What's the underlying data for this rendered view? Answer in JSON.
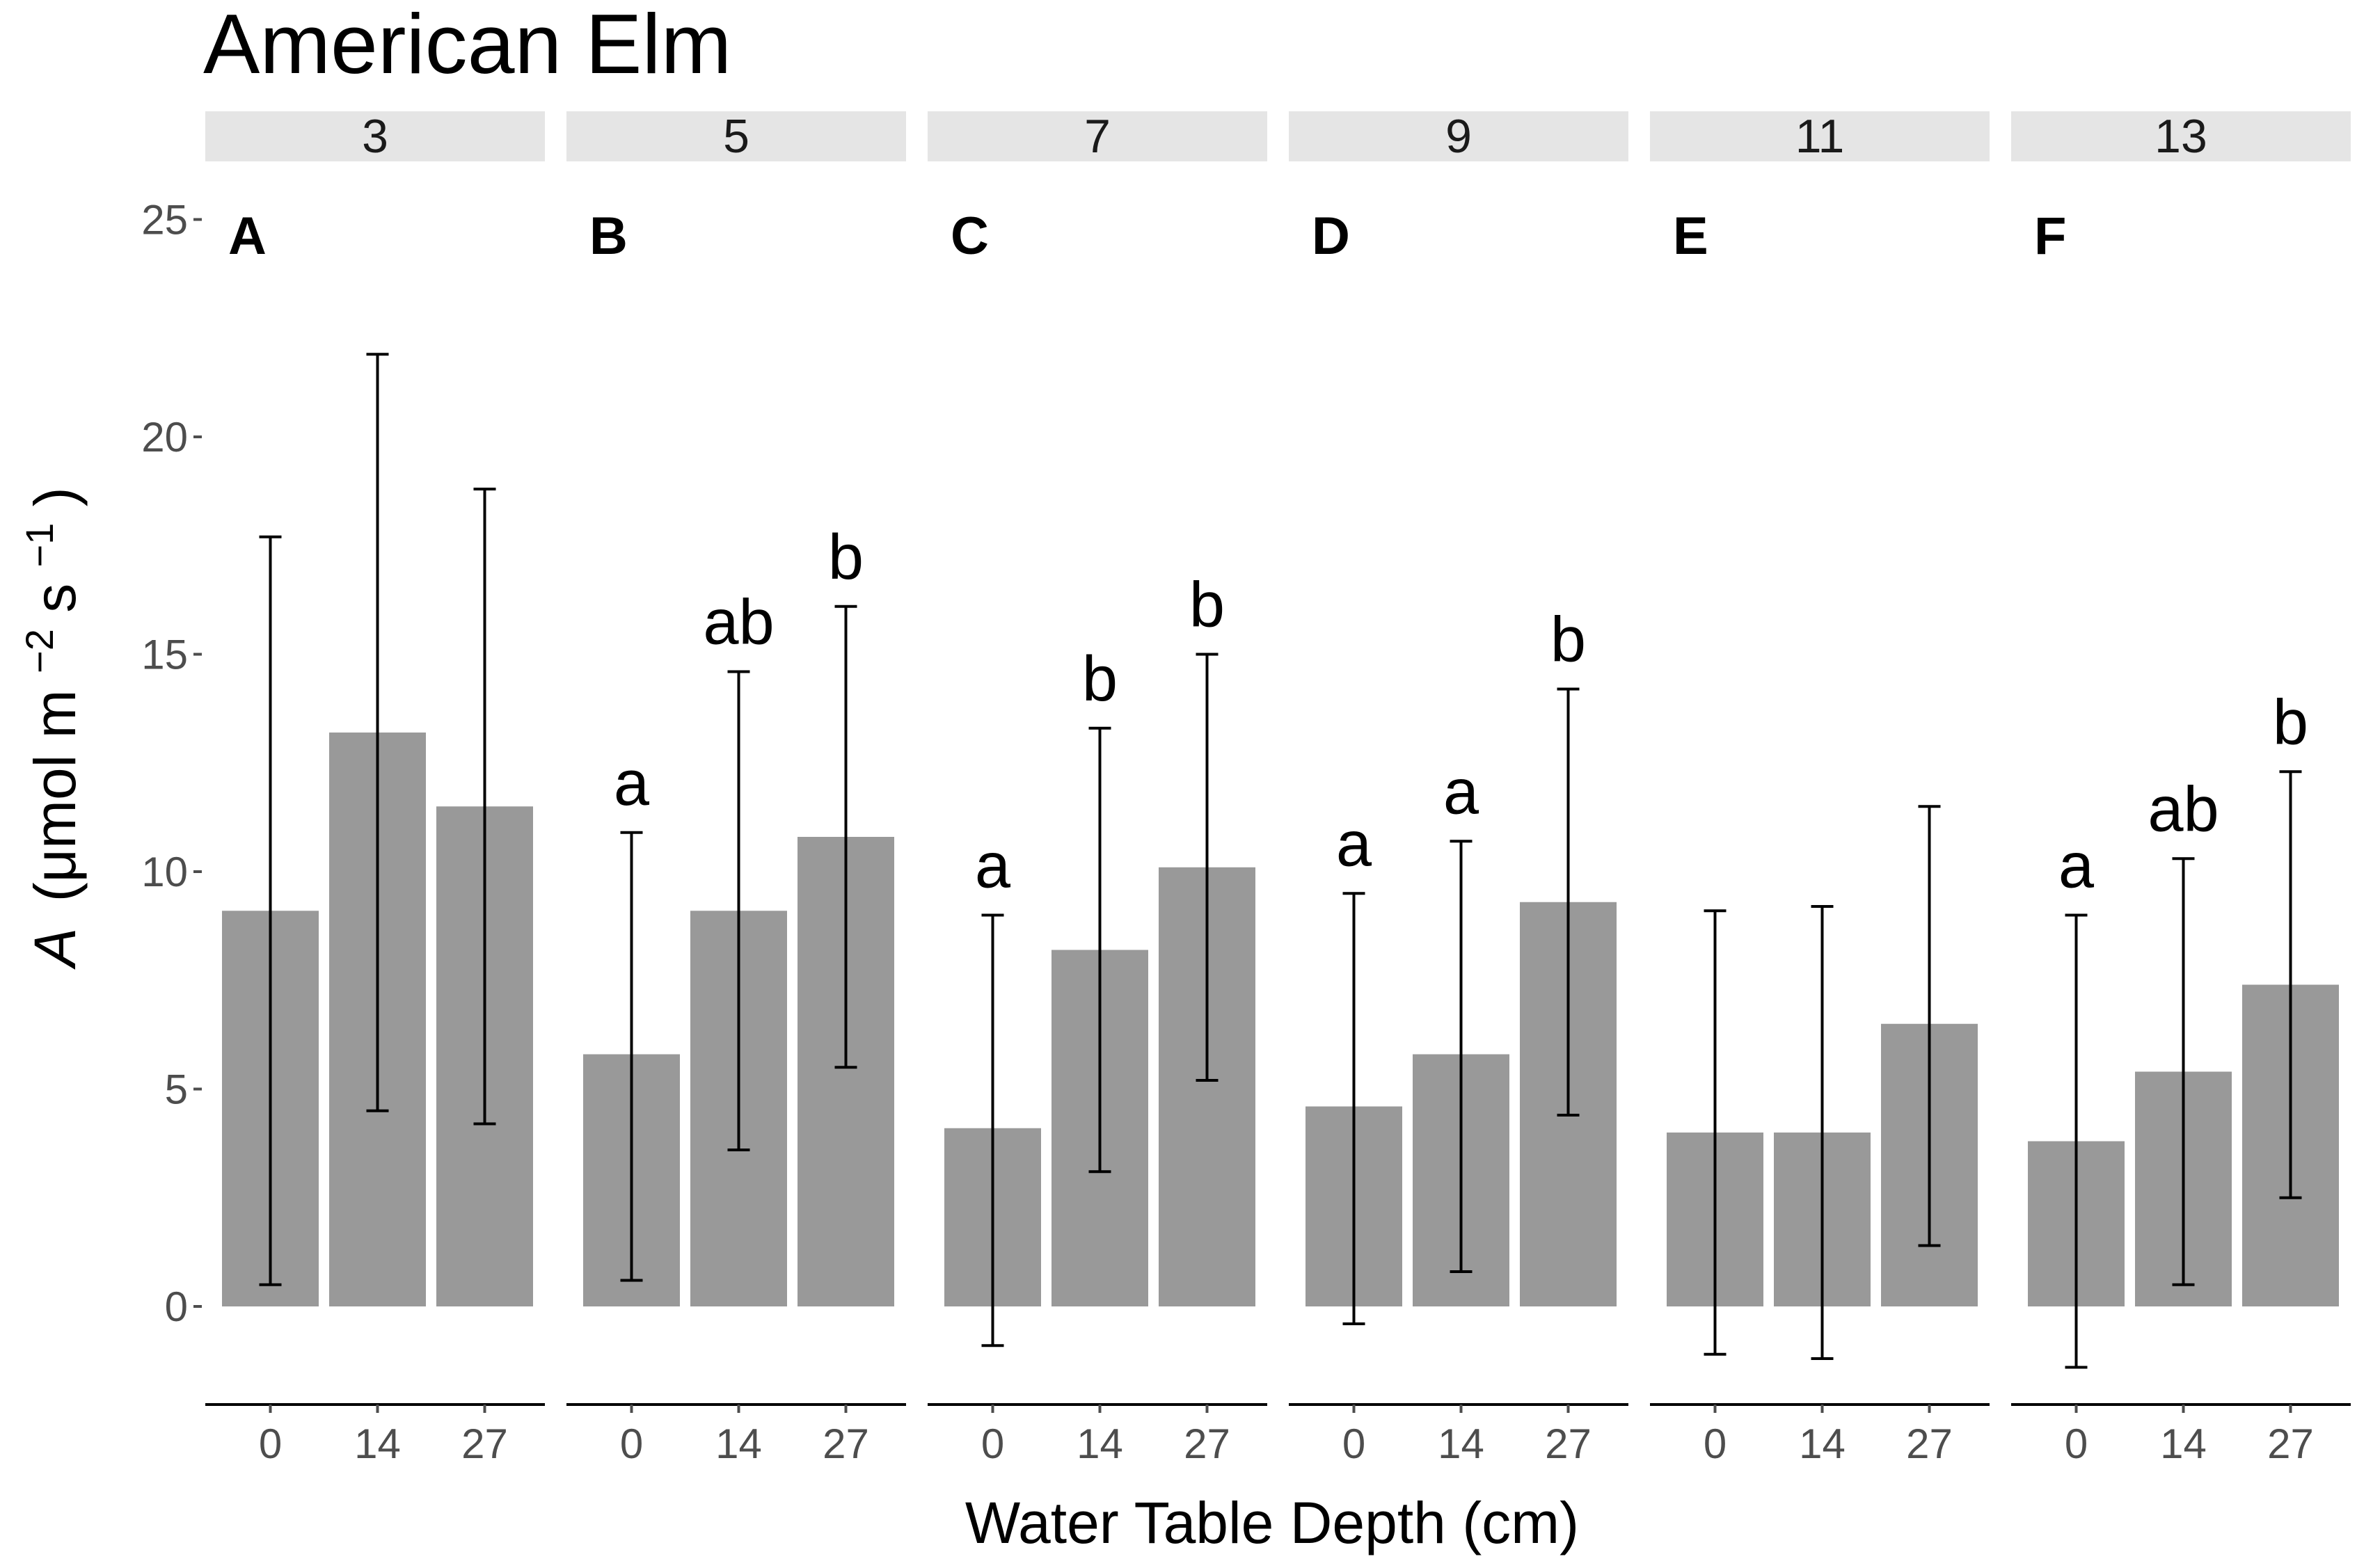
{
  "chart_data": {
    "type": "bar",
    "title": "American Elm",
    "xlabel": "Water Table Depth (cm)",
    "ylabel": {
      "symbol": "A",
      "unit_open": "(μmol m",
      "exp1": "−2",
      "unit_mid": " s",
      "exp2": "−1",
      "unit_close": ")"
    },
    "ylim": [
      -2.2,
      25.5
    ],
    "yticks": [
      0,
      5,
      10,
      15,
      20,
      25
    ],
    "categories": [
      "0",
      "14",
      "27"
    ],
    "colors": {
      "bar": "#999999",
      "strip": "#e5e5e5",
      "errorbar": "#000000",
      "axis": "#000000",
      "tick": "#4d4d4d"
    },
    "panels": [
      {
        "strip": "3",
        "letter": "A",
        "values": [
          9.1,
          13.2,
          11.5
        ],
        "err_low": [
          0.5,
          4.5,
          4.2
        ],
        "err_high": [
          17.7,
          21.9,
          18.8
        ],
        "sig": [
          "",
          "",
          ""
        ]
      },
      {
        "strip": "5",
        "letter": "B",
        "values": [
          5.8,
          9.1,
          10.8
        ],
        "err_low": [
          0.6,
          3.6,
          5.5
        ],
        "err_high": [
          10.9,
          14.6,
          16.1
        ],
        "sig": [
          "a",
          "ab",
          "b"
        ]
      },
      {
        "strip": "7",
        "letter": "C",
        "values": [
          4.1,
          8.2,
          10.1
        ],
        "err_low": [
          -0.9,
          3.1,
          5.2
        ],
        "err_high": [
          9.0,
          13.3,
          15.0
        ],
        "sig": [
          "a",
          "b",
          "b"
        ]
      },
      {
        "strip": "9",
        "letter": "D",
        "values": [
          4.6,
          5.8,
          9.3
        ],
        "err_low": [
          -0.4,
          0.8,
          4.4
        ],
        "err_high": [
          9.5,
          10.7,
          14.2
        ],
        "sig": [
          "a",
          "a",
          "b"
        ]
      },
      {
        "strip": "11",
        "letter": "E",
        "values": [
          4.0,
          4.0,
          6.5
        ],
        "err_low": [
          -1.1,
          -1.2,
          1.4
        ],
        "err_high": [
          9.1,
          9.2,
          11.5
        ],
        "sig": [
          "",
          "",
          ""
        ]
      },
      {
        "strip": "13",
        "letter": "F",
        "values": [
          3.8,
          5.4,
          7.4
        ],
        "err_low": [
          -1.4,
          0.5,
          2.5
        ],
        "err_high": [
          9.0,
          10.3,
          12.3
        ],
        "sig": [
          "a",
          "ab",
          "b"
        ]
      }
    ]
  }
}
